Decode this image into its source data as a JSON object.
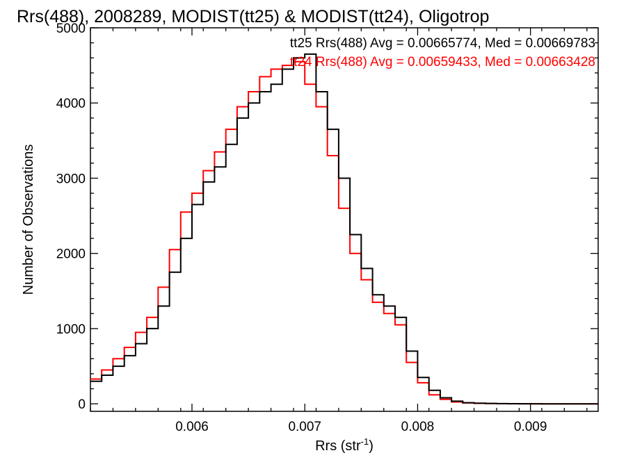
{
  "chart_data": {
    "type": "line",
    "title": "Rrs(488), 2008289, MODIST(tt25) & MODIST(tt24), Oligotrop",
    "xlabel": "Rrs (str",
    "xlabel_sup": "-1",
    "xlabel_close": ")",
    "ylabel": "Number of Observations",
    "xlim": [
      0.0051,
      0.0096
    ],
    "ylim": [
      -100,
      5000
    ],
    "xticks": [
      0.006,
      0.007,
      0.008,
      0.009
    ],
    "xtick_labels": [
      "0.006",
      "0.007",
      "0.008",
      "0.009"
    ],
    "yticks": [
      0,
      1000,
      2000,
      3000,
      4000,
      5000
    ],
    "ytick_labels": [
      "0",
      "1000",
      "2000",
      "3000",
      "4000",
      "5000"
    ],
    "grid": false,
    "legend_position": "top-right",
    "series": [
      {
        "name": "tt25",
        "legend": "tt25 Rrs(488) Avg = 0.00665774, Med = 0.00669783",
        "color": "#000000",
        "x": [
          0.0051,
          0.0052,
          0.0053,
          0.0054,
          0.0055,
          0.0056,
          0.0057,
          0.0058,
          0.0059,
          0.006,
          0.0061,
          0.0062,
          0.0063,
          0.0064,
          0.0065,
          0.0066,
          0.0067,
          0.0068,
          0.0069,
          0.007,
          0.0071,
          0.0072,
          0.0073,
          0.0074,
          0.0075,
          0.0076,
          0.0077,
          0.0078,
          0.0079,
          0.008,
          0.0081,
          0.0082,
          0.0083,
          0.0084,
          0.0085,
          0.0086,
          0.0087,
          0.0088,
          0.0089,
          0.009,
          0.0091,
          0.0092,
          0.0093,
          0.0094,
          0.0095,
          0.0096
        ],
        "y": [
          300,
          380,
          500,
          640,
          800,
          1000,
          1300,
          1750,
          2200,
          2650,
          2950,
          3150,
          3450,
          3800,
          4000,
          4150,
          4250,
          4450,
          4600,
          4650,
          4150,
          3650,
          3000,
          2250,
          1800,
          1450,
          1300,
          1150,
          700,
          350,
          180,
          80,
          35,
          15,
          8,
          5,
          3,
          2,
          1,
          1,
          0,
          0,
          0,
          0,
          0,
          0
        ]
      },
      {
        "name": "tt24",
        "legend": "tt24 Rrs(488) Avg = 0.00659433, Med = 0.00663428",
        "color": "#ff0000",
        "x": [
          0.0051,
          0.0052,
          0.0053,
          0.0054,
          0.0055,
          0.0056,
          0.0057,
          0.0058,
          0.0059,
          0.006,
          0.0061,
          0.0062,
          0.0063,
          0.0064,
          0.0065,
          0.0066,
          0.0067,
          0.0068,
          0.0069,
          0.007,
          0.0071,
          0.0072,
          0.0073,
          0.0074,
          0.0075,
          0.0076,
          0.0077,
          0.0078,
          0.0079,
          0.008,
          0.0081,
          0.0082,
          0.0083,
          0.0084,
          0.0085,
          0.0086,
          0.0087,
          0.0088,
          0.0089,
          0.009,
          0.0091,
          0.0092,
          0.0093,
          0.0094,
          0.0095,
          0.0096
        ],
        "y": [
          330,
          450,
          600,
          750,
          950,
          1150,
          1550,
          2050,
          2550,
          2800,
          3100,
          3350,
          3650,
          3950,
          4150,
          4350,
          4450,
          4500,
          4550,
          4250,
          3950,
          3300,
          2600,
          2000,
          1650,
          1350,
          1200,
          1050,
          550,
          280,
          120,
          60,
          25,
          12,
          6,
          4,
          2,
          1,
          1,
          0,
          0,
          0,
          0,
          0,
          0,
          0
        ]
      }
    ]
  }
}
